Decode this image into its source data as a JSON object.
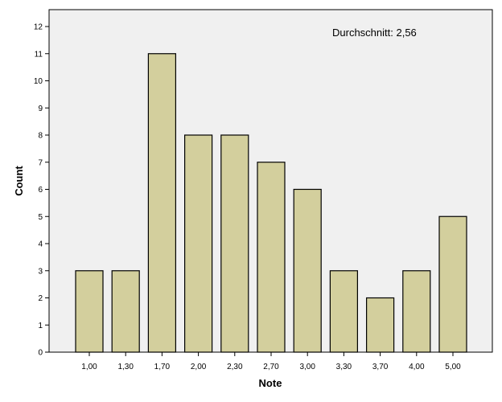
{
  "chart_data": {
    "type": "bar",
    "categories": [
      "1,00",
      "1,30",
      "1,70",
      "2,00",
      "2,30",
      "2,70",
      "3,00",
      "3,30",
      "3,70",
      "4,00",
      "5,00"
    ],
    "values": [
      3,
      3,
      11,
      8,
      8,
      7,
      6,
      3,
      2,
      3,
      5
    ],
    "xlabel": "Note",
    "ylabel": "Count",
    "ylim": [
      0,
      12
    ],
    "yticks": [
      0,
      1,
      2,
      3,
      4,
      5,
      6,
      7,
      8,
      9,
      10,
      11,
      12
    ],
    "annotation": "Durchschnitt: 2,56",
    "grid": false,
    "colors": {
      "bar_fill": "#d3cf9d",
      "bar_stroke": "#000000",
      "plot_background": "#f0f0f0"
    }
  }
}
